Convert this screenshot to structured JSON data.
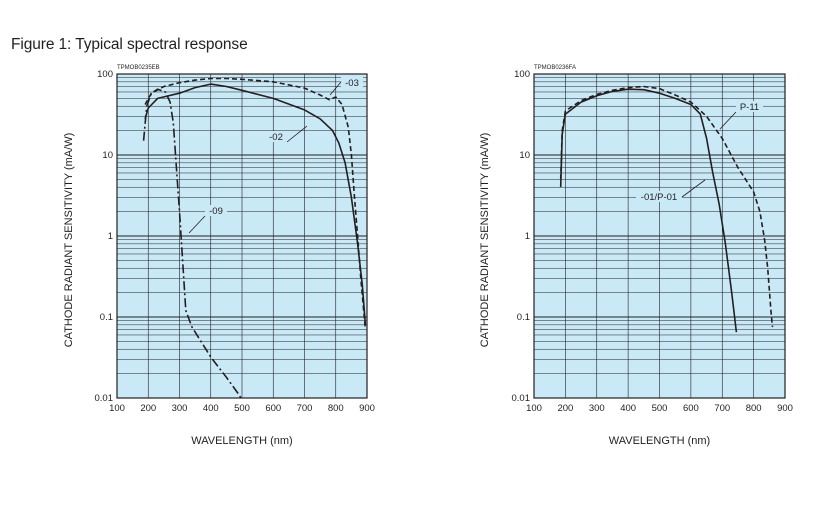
{
  "page": {
    "figure_title": "Figure 1: Typical spectral response"
  },
  "colors": {
    "plot_background": "#c9e9f7",
    "grid": "#231f20",
    "curve": "#231f20"
  },
  "chart_data": [
    {
      "type": "line",
      "code": "TPMOB0235EB",
      "xlabel": "WAVELENGTH (nm)",
      "ylabel": "CATHODE RADIANT SENSITIVITY (mA/W)",
      "xlim": [
        100,
        900
      ],
      "ylim": [
        0.01,
        100
      ],
      "yscale": "log",
      "grid": true,
      "x_ticks": [
        "100",
        "200",
        "300",
        "400",
        "500",
        "600",
        "700",
        "800",
        "900"
      ],
      "y_ticks": [
        "0.01",
        "0.1",
        "1",
        "10",
        "100"
      ],
      "series": [
        {
          "name": "-03",
          "style": "dashed",
          "points": [
            [
              190,
              42
            ],
            [
              210,
              58
            ],
            [
              250,
              70
            ],
            [
              300,
              78
            ],
            [
              350,
              84
            ],
            [
              400,
              88
            ],
            [
              450,
              88
            ],
            [
              500,
              86
            ],
            [
              600,
              80
            ],
            [
              700,
              67
            ],
            [
              750,
              55
            ],
            [
              780,
              48
            ],
            [
              800,
              52
            ],
            [
              820,
              42
            ],
            [
              840,
              22
            ],
            [
              850,
              10
            ],
            [
              860,
              3
            ],
            [
              870,
              1
            ],
            [
              880,
              0.3
            ],
            [
              895,
              0.07
            ]
          ]
        },
        {
          "name": "-02",
          "style": "solid",
          "points": [
            [
              190,
              28
            ],
            [
              200,
              38
            ],
            [
              230,
              50
            ],
            [
              300,
              58
            ],
            [
              350,
              68
            ],
            [
              400,
              75
            ],
            [
              450,
              70
            ],
            [
              500,
              63
            ],
            [
              600,
              50
            ],
            [
              700,
              36
            ],
            [
              750,
              28
            ],
            [
              790,
              20
            ],
            [
              810,
              14
            ],
            [
              830,
              8
            ],
            [
              850,
              3
            ],
            [
              870,
              0.8
            ],
            [
              885,
              0.25
            ],
            [
              895,
              0.08
            ]
          ]
        },
        {
          "name": "-09",
          "style": "dash-dot",
          "points": [
            [
              185,
              15
            ],
            [
              195,
              40
            ],
            [
              210,
              58
            ],
            [
              230,
              65
            ],
            [
              255,
              60
            ],
            [
              270,
              45
            ],
            [
              280,
              25
            ],
            [
              290,
              7
            ],
            [
              300,
              2
            ],
            [
              310,
              0.5
            ],
            [
              320,
              0.12
            ],
            [
              340,
              0.075
            ],
            [
              400,
              0.032
            ],
            [
              450,
              0.018
            ],
            [
              490,
              0.011
            ],
            [
              500,
              0.0095
            ]
          ]
        }
      ]
    },
    {
      "type": "line",
      "code": "TPMOB0236FA",
      "xlabel": "WAVELENGTH (nm)",
      "ylabel": "CATHODE RADIANT SENSITIVITY (mA/W)",
      "xlim": [
        100,
        900
      ],
      "ylim": [
        0.01,
        100
      ],
      "yscale": "log",
      "grid": true,
      "x_ticks": [
        "100",
        "200",
        "300",
        "400",
        "500",
        "600",
        "700",
        "800",
        "900"
      ],
      "y_ticks": [
        "0.01",
        "0.1",
        "1",
        "10",
        "100"
      ],
      "series": [
        {
          "name": "P-11",
          "style": "dashed",
          "points": [
            [
              185,
              5
            ],
            [
              190,
              20
            ],
            [
              200,
              35
            ],
            [
              250,
              47
            ],
            [
              300,
              56
            ],
            [
              350,
              63
            ],
            [
              400,
              68
            ],
            [
              450,
              70
            ],
            [
              500,
              66
            ],
            [
              550,
              55
            ],
            [
              600,
              45
            ],
            [
              650,
              30
            ],
            [
              700,
              16
            ],
            [
              750,
              7
            ],
            [
              800,
              3.5
            ],
            [
              820,
              2
            ],
            [
              835,
              0.9
            ],
            [
              845,
              0.4
            ],
            [
              855,
              0.12
            ],
            [
              860,
              0.075
            ]
          ]
        },
        {
          "name": "-01/P-01",
          "style": "solid",
          "points": [
            [
              185,
              4
            ],
            [
              190,
              18
            ],
            [
              200,
              32
            ],
            [
              250,
              45
            ],
            [
              300,
              54
            ],
            [
              350,
              61
            ],
            [
              400,
              65
            ],
            [
              450,
              64
            ],
            [
              500,
              58
            ],
            [
              550,
              50
            ],
            [
              600,
              42
            ],
            [
              630,
              32
            ],
            [
              650,
              16
            ],
            [
              670,
              6
            ],
            [
              690,
              2.5
            ],
            [
              710,
              0.8
            ],
            [
              730,
              0.2
            ],
            [
              745,
              0.065
            ]
          ]
        }
      ]
    }
  ]
}
